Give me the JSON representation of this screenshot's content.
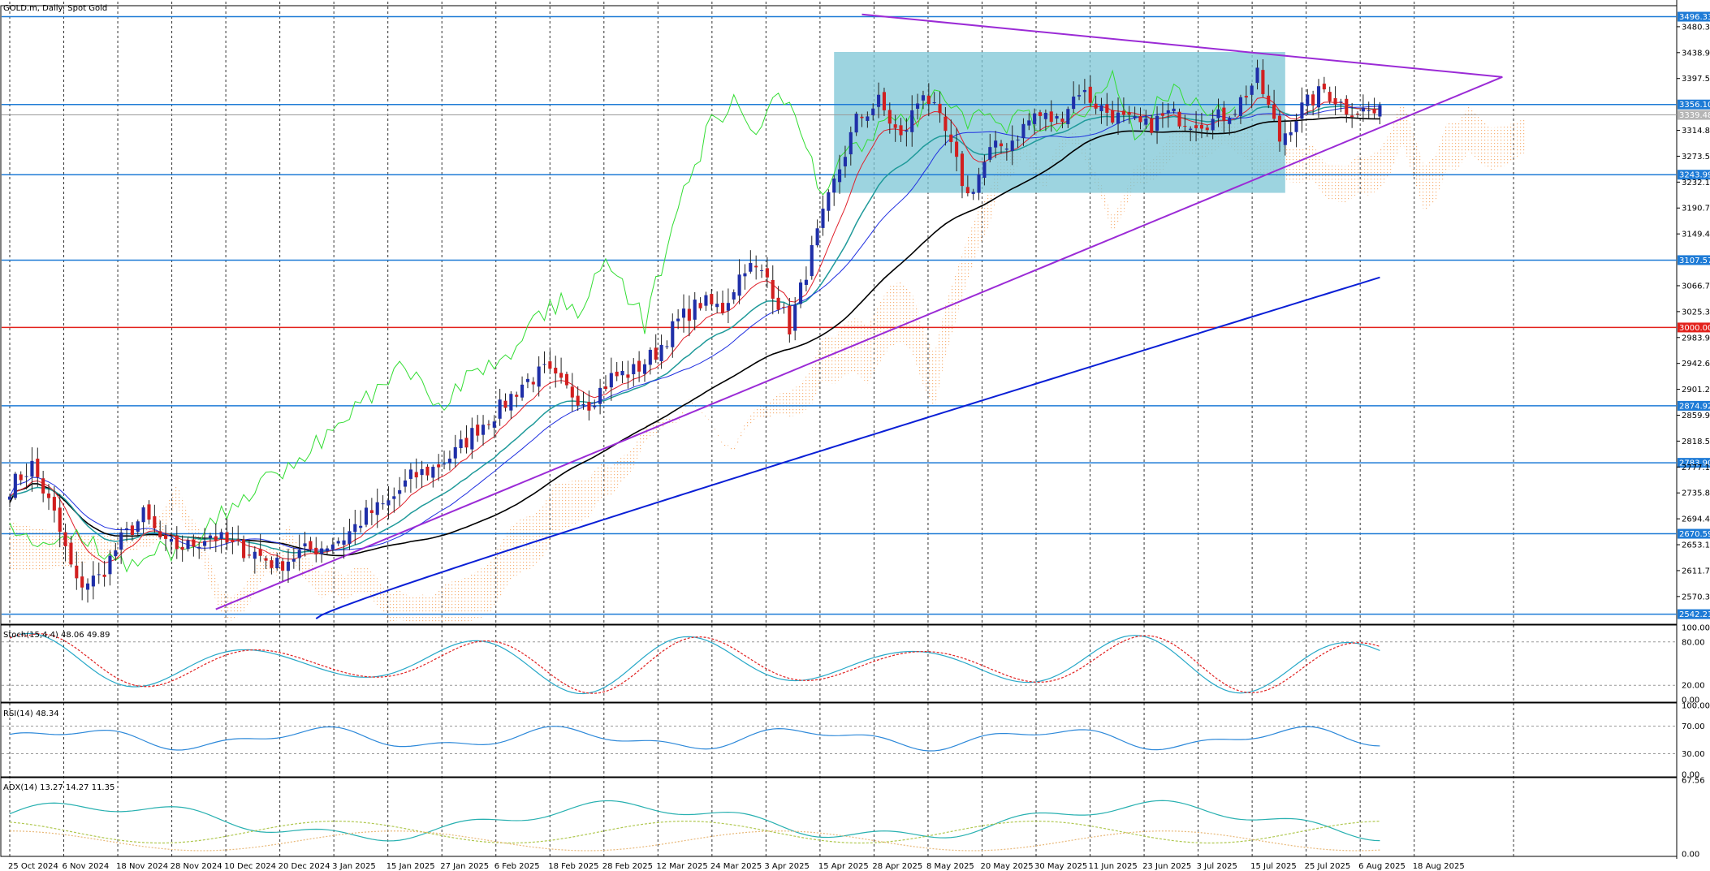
{
  "header": {
    "title": "GOLD.m, Daily:  Spot Gold",
    "stoch": "Stoch(15,4,4) 48.06 49.89",
    "rsi": "RSI(14) 48.34",
    "adx": "ADX(14) 13.27 14.27 11.35"
  },
  "colors": {
    "bull": "#1f2fa8",
    "bear": "#d11f1f",
    "hline": "#1e7bd6",
    "hline_red": "#e3221c",
    "trend": "#9b2bd6",
    "box": "#7cc6d6",
    "ma200": "#0a1fd6",
    "ma50": "#000000",
    "ema": "#1f9a9a",
    "tenkan": "#e0202a",
    "kijun": "#2030e0",
    "chikou": "#33dd33",
    "cloud": "#f4a460",
    "stoch_main": "#27a8c8",
    "stoch_sig": "#e02020",
    "rsi": "#2c88d9",
    "adx": "#27b0b0",
    "pdi": "#b0c850",
    "mdi": "#e8b878"
  },
  "chart_data": {
    "type": "candlestick",
    "symbol": "GOLD.m",
    "timeframe": "Daily",
    "description": "Spot Gold",
    "ylim": [
      2530,
      3510
    ],
    "y_ticks": [
      3480.31,
      3438.95,
      3397.59,
      3314.87,
      3273.51,
      3232.15,
      3190.79,
      3149.43,
      3066.71,
      3025.35,
      2983.99,
      2942.63,
      2901.27,
      2859.91,
      2818.55,
      2777.19,
      2735.83,
      2694.47,
      2653.11,
      2611.75,
      2570.39
    ],
    "x_labels": [
      "25 Oct 2024",
      "6 Nov 2024",
      "18 Nov 2024",
      "28 Nov 2024",
      "10 Dec 2024",
      "20 Dec 2024",
      "3 Jan 2025",
      "15 Jan 2025",
      "27 Jan 2025",
      "6 Feb 2025",
      "18 Feb 2025",
      "28 Feb 2025",
      "12 Mar 2025",
      "24 Mar 2025",
      "3 Apr 2025",
      "15 Apr 2025",
      "28 Apr 2025",
      "8 May 2025",
      "20 May 2025",
      "30 May 2025",
      "11 Jun 2025",
      "23 Jun 2025",
      "3 Jul 2025",
      "15 Jul 2025",
      "25 Jul 2025",
      "6 Aug 2025",
      "18 Aug 2025"
    ],
    "price_levels": [
      {
        "value": 3496.33,
        "label": "3496.33",
        "kind": "resistance"
      },
      {
        "value": 3356.1,
        "label": "3356.10",
        "kind": "resistance"
      },
      {
        "value": 3339.48,
        "label": "3339.48",
        "kind": "current"
      },
      {
        "value": 3243.99,
        "label": "3243.99",
        "kind": "support"
      },
      {
        "value": 3107.57,
        "label": "3107.57",
        "kind": "support"
      },
      {
        "value": 3000.0,
        "label": "3000.00",
        "kind": "psychological"
      },
      {
        "value": 2874.92,
        "label": "2874.92",
        "kind": "support"
      },
      {
        "value": 2783.9,
        "label": "2783.90",
        "kind": "support"
      },
      {
        "value": 2670.59,
        "label": "2670.59",
        "kind": "support"
      },
      {
        "value": 2542.21,
        "label": "2542.21",
        "kind": "support"
      }
    ],
    "stoch_levels": [
      "100.00",
      "80.00",
      "20.00",
      "0.00"
    ],
    "rsi_levels": [
      "100.00",
      "70.00",
      "30.00",
      "0.00"
    ],
    "adx_levels": [
      "67.56",
      "0.00"
    ],
    "ohlc_anchors": [
      [
        0,
        2745
      ],
      [
        4,
        2780
      ],
      [
        8,
        2700
      ],
      [
        12,
        2590
      ],
      [
        16,
        2600
      ],
      [
        20,
        2660
      ],
      [
        24,
        2700
      ],
      [
        28,
        2650
      ],
      [
        32,
        2650
      ],
      [
        36,
        2670
      ],
      [
        40,
        2650
      ],
      [
        44,
        2640
      ],
      [
        48,
        2620
      ],
      [
        52,
        2640
      ],
      [
        56,
        2650
      ],
      [
        60,
        2665
      ],
      [
        64,
        2700
      ],
      [
        68,
        2720
      ],
      [
        72,
        2760
      ],
      [
        76,
        2775
      ],
      [
        80,
        2800
      ],
      [
        84,
        2840
      ],
      [
        88,
        2870
      ],
      [
        92,
        2910
      ],
      [
        96,
        2930
      ],
      [
        100,
        2900
      ],
      [
        104,
        2880
      ],
      [
        108,
        2920
      ],
      [
        112,
        2930
      ],
      [
        116,
        2960
      ],
      [
        120,
        3010
      ],
      [
        124,
        3040
      ],
      [
        128,
        3030
      ],
      [
        132,
        3100
      ],
      [
        136,
        3080
      ],
      [
        140,
        3000
      ],
      [
        144,
        3120
      ],
      [
        148,
        3230
      ],
      [
        152,
        3330
      ],
      [
        156,
        3360
      ],
      [
        160,
        3300
      ],
      [
        164,
        3380
      ],
      [
        168,
        3310
      ],
      [
        172,
        3210
      ],
      [
        176,
        3280
      ],
      [
        180,
        3300
      ],
      [
        184,
        3340
      ],
      [
        188,
        3330
      ],
      [
        192,
        3380
      ],
      [
        196,
        3350
      ],
      [
        200,
        3330
      ],
      [
        204,
        3320
      ],
      [
        208,
        3340
      ],
      [
        212,
        3330
      ],
      [
        216,
        3330
      ],
      [
        220,
        3350
      ],
      [
        224,
        3400
      ],
      [
        228,
        3300
      ],
      [
        232,
        3350
      ],
      [
        236,
        3380
      ],
      [
        240,
        3350
      ],
      [
        244,
        3345
      ],
      [
        246,
        3340
      ]
    ]
  }
}
